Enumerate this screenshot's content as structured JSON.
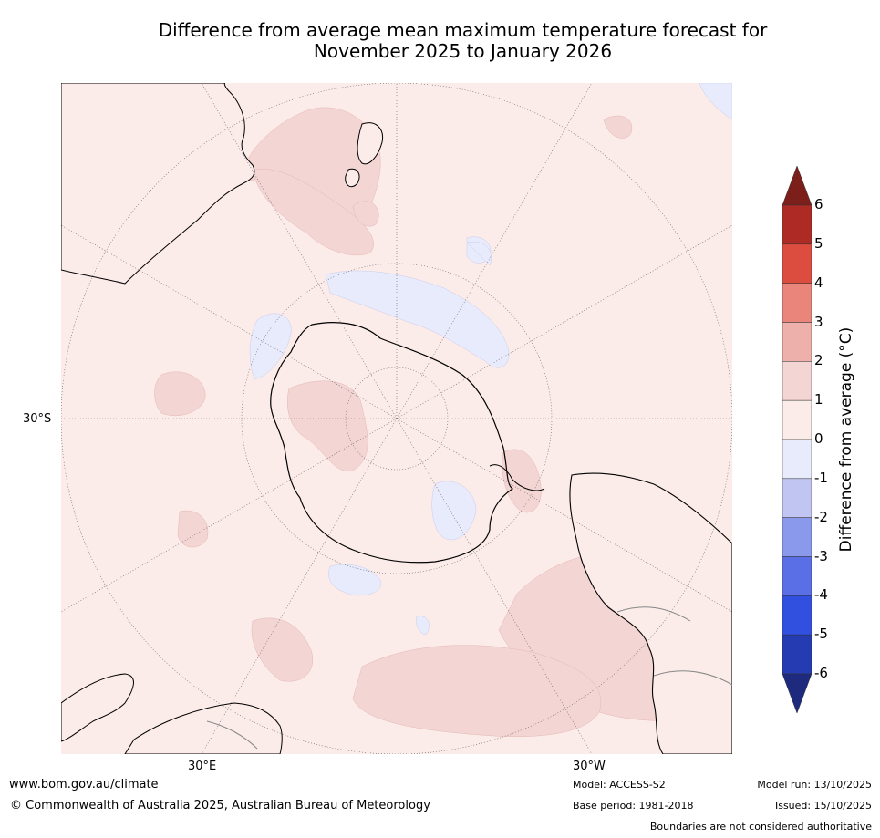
{
  "title": {
    "line1": "Difference from average mean maximum temperature forecast for",
    "line2": "November 2025 to January 2026"
  },
  "map": {
    "projection": "south-polar-stereographic",
    "axis_labels": {
      "left": "30°S",
      "bottom_left": "30°E",
      "bottom_right": "30°W"
    },
    "colors": {
      "ocean_background": "#fbebe9",
      "warm_anomaly": "#f3d5d3",
      "cool_anomaly": "#e8ebfb",
      "gridline": "#666666",
      "coastline": "#000000",
      "border": "#888888"
    }
  },
  "colorbar": {
    "title": "Difference from average (°C)",
    "ticks": [
      "6",
      "5",
      "4",
      "3",
      "2",
      "1",
      "0",
      "-1",
      "-2",
      "-3",
      "-4",
      "-5",
      "-6"
    ],
    "colors_top_to_bottom": [
      "#7c1f1a",
      "#ad2b24",
      "#dc4d40",
      "#ea857c",
      "#eeb0aa",
      "#f3d5d3",
      "#fbebe9",
      "#e8ebfb",
      "#c0c6f1",
      "#8a99ec",
      "#5a6ee6",
      "#3150e0",
      "#253bb1",
      "#1e2a7d"
    ]
  },
  "footer": {
    "website": "www.bom.gov.au/climate",
    "copyright": "© Commonwealth of Australia 2025, Australian Bureau of Meteorology",
    "model": "Model: ACCESS-S2",
    "base_period": "Base period: 1981-2018",
    "model_run": "Model run: 13/10/2025",
    "issued": "Issued: 15/10/2025",
    "disclaimer": "Boundaries are not considered authoritative"
  }
}
